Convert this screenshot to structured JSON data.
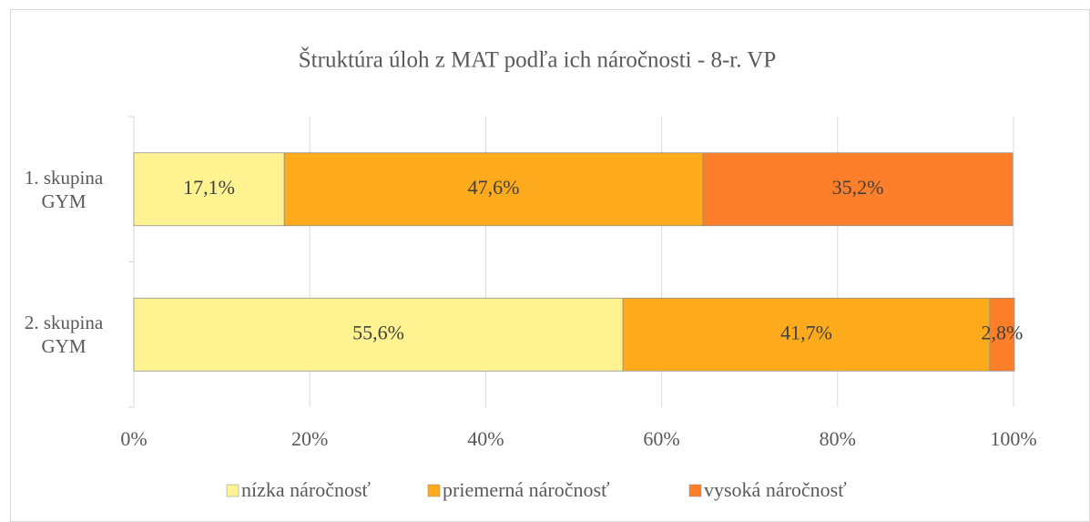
{
  "chart_data": {
    "type": "stacked_barh",
    "title": "Štruktúra úloh z MAT podľa ich náročnosti - 8-r. VP",
    "categories": [
      "1. skupina GYM",
      "2. skupina GYM"
    ],
    "series": [
      {
        "name": "nízka náročnosť",
        "color": "#fff291",
        "values": [
          17.1,
          55.6
        ],
        "value_labels": [
          "17,1%",
          "55,6%"
        ]
      },
      {
        "name": "priemerná náročnosť",
        "color": "#fdaa1c",
        "values": [
          47.6,
          41.7
        ],
        "value_labels": [
          "47,6%",
          "41,7%"
        ]
      },
      {
        "name": "vysoká náročnosť",
        "color": "#fd7f2a",
        "values": [
          35.2,
          2.8
        ],
        "value_labels": [
          "35,2%",
          "2,8%"
        ]
      }
    ],
    "xlim": [
      0,
      100
    ],
    "xticks": [
      {
        "value": 0,
        "label": "0%"
      },
      {
        "value": 20,
        "label": "20%"
      },
      {
        "value": 40,
        "label": "40%"
      },
      {
        "value": 60,
        "label": "60%"
      },
      {
        "value": 80,
        "label": "80%"
      },
      {
        "value": 100,
        "label": "100%"
      }
    ],
    "grid": true,
    "legend": "bottom"
  }
}
